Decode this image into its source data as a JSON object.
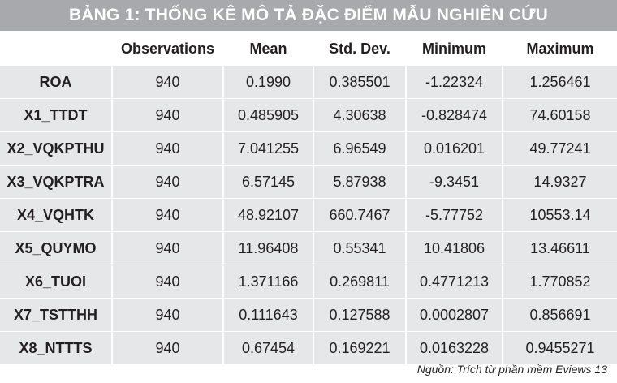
{
  "title": "BẢNG 1: THỐNG KÊ MÔ TẢ ĐẶC ĐIỂM MẪU NGHIÊN CỨU",
  "columns": [
    "",
    "Observations",
    "Mean",
    "Std. Dev.",
    "Minimum",
    "Maximum"
  ],
  "rows": [
    [
      "ROA",
      "940",
      "0.1990",
      "0.385501",
      "-1.22324",
      "1.256461"
    ],
    [
      "X1_TTDT",
      "940",
      "0.485905",
      "4.30638",
      "-0.828474",
      "74.60158"
    ],
    [
      "X2_VQKPTHU",
      "940",
      "7.041255",
      "6.96549",
      "0.016201",
      "49.77241"
    ],
    [
      "X3_VQKPTRA",
      "940",
      "6.57145",
      "5.87938",
      "-9.3451",
      "14.9327"
    ],
    [
      "X4_VQHTK",
      "940",
      "48.92107",
      "660.7467",
      "-5.77752",
      "10553.14"
    ],
    [
      "X5_QUYMO",
      "940",
      "11.96408",
      "0.55341",
      "10.41806",
      "13.46611"
    ],
    [
      "X6_TUOI",
      "940",
      "1.371166",
      "0.269811",
      "0.4771213",
      "1.770852"
    ],
    [
      "X7_TSTTHH",
      "940",
      "0.111643",
      "0.127588",
      "0.0002807",
      "0.856691"
    ],
    [
      "X8_NTTTS",
      "940",
      "0.67454",
      "0.169221",
      "0.0163228",
      "0.9455271"
    ]
  ],
  "source": "Nguồn: Trích từ phần mềm Eviews 13",
  "colors": {
    "title_bg": "#a7a9ac",
    "cell_bg": "#e6e7e8",
    "text": "#231f20"
  }
}
